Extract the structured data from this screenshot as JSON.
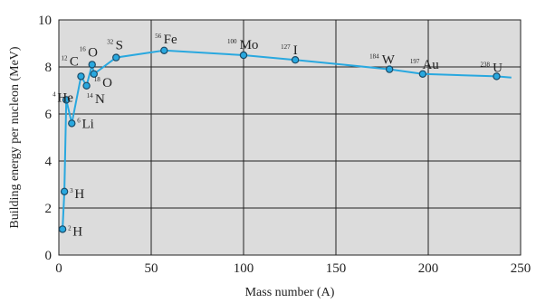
{
  "chart_data": {
    "type": "scatter",
    "xlabel": "Mass number (A)",
    "ylabel": "Building energy per nucleon (MeV)",
    "xlim": [
      0,
      250
    ],
    "ylim": [
      0,
      10
    ],
    "xticks": [
      "0",
      "50",
      "100",
      "150",
      "200",
      "250"
    ],
    "yticks": [
      "0",
      "2",
      "4",
      "6",
      "8",
      "10"
    ],
    "grid": true,
    "colors": {
      "curve": "#29a8df",
      "marker_fill": "#29a8df",
      "marker_edge": "#1a4a66",
      "plot_bg": "#dcdcdc"
    },
    "points": [
      {
        "label": "H",
        "mass": "2",
        "x": 2,
        "y": 1.1
      },
      {
        "label": "H",
        "mass": "3",
        "x": 3,
        "y": 2.7
      },
      {
        "label": "He",
        "mass": "4",
        "x": 4,
        "y": 6.6
      },
      {
        "label": "Li",
        "mass": "6",
        "x": 7,
        "y": 5.6
      },
      {
        "label": "C",
        "mass": "12",
        "x": 12,
        "y": 7.6
      },
      {
        "label": "N",
        "mass": "14",
        "x": 15,
        "y": 7.2
      },
      {
        "label": "O",
        "mass": "16",
        "x": 18,
        "y": 8.1
      },
      {
        "label": "O",
        "mass": "18",
        "x": 19,
        "y": 7.7
      },
      {
        "label": "S",
        "mass": "32",
        "x": 31,
        "y": 8.4
      },
      {
        "label": "Fe",
        "mass": "56",
        "x": 57,
        "y": 8.7
      },
      {
        "label": "Mo",
        "mass": "100",
        "x": 100,
        "y": 8.5
      },
      {
        "label": "I",
        "mass": "127",
        "x": 128,
        "y": 8.3
      },
      {
        "label": "W",
        "mass": "184",
        "x": 179,
        "y": 7.9
      },
      {
        "label": "Au",
        "mass": "197",
        "x": 197,
        "y": 7.7
      },
      {
        "label": "U",
        "mass": "238",
        "x": 237,
        "y": 7.6
      }
    ],
    "curve": [
      [
        2,
        1.1
      ],
      [
        3,
        2.7
      ],
      [
        4,
        6.6
      ],
      [
        7,
        5.6
      ],
      [
        12,
        7.6
      ],
      [
        15,
        7.2
      ],
      [
        18,
        8.1
      ],
      [
        19,
        7.7
      ],
      [
        31,
        8.4
      ],
      [
        57,
        8.7
      ],
      [
        100,
        8.5
      ],
      [
        128,
        8.3
      ],
      [
        179,
        7.9
      ],
      [
        197,
        7.7
      ],
      [
        237,
        7.6
      ],
      [
        245,
        7.55
      ]
    ]
  }
}
